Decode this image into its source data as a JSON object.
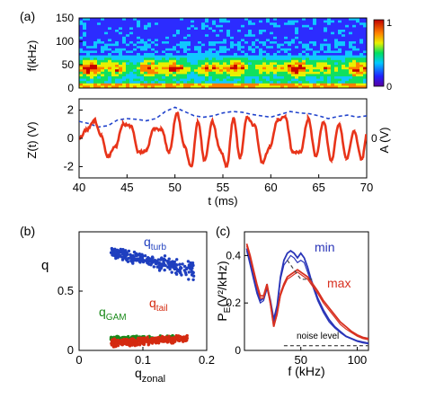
{
  "panel_labels": {
    "a": "(a)",
    "b": "(b)",
    "c": "(c)"
  },
  "colors": {
    "turb": "#1f3fbf",
    "tail": "#d42a10",
    "gam": "#1a8a1a",
    "zt": "#e8341a",
    "amp": "#2244cc",
    "min": "#2a35b8",
    "max": "#d83020",
    "noise": "#555555"
  },
  "chart_data": [
    {
      "type": "heatmap",
      "panel": "(a) top",
      "xlabel": "",
      "ylabel": "f(kHz)",
      "ylim": [
        0,
        150
      ],
      "yticks": [
        "0",
        "50",
        "100",
        "150"
      ],
      "colorbar": {
        "min": "0",
        "max": "1",
        "colormap": "rainbow"
      },
      "time_range_ms": [
        40,
        70
      ],
      "description_bands": [
        {
          "f_khz": [
            0,
            15
          ],
          "intensity": 0.7
        },
        {
          "f_khz": [
            25,
            65
          ],
          "intensity": "bursty 0.3-1.0"
        },
        {
          "f_khz": [
            65,
            150
          ],
          "intensity": 0.15
        }
      ]
    },
    {
      "type": "line",
      "panel": "(a) bottom",
      "xlabel": "t (ms)",
      "ylabel": "Z(t) (V)",
      "ylabel_right": "A (V)",
      "xlim": [
        40,
        70
      ],
      "ylim": [
        -2.8,
        2.8
      ],
      "xticks": [
        "40",
        "45",
        "50",
        "55",
        "60",
        "65",
        "70"
      ],
      "yticks": [
        "-2",
        "0",
        "2"
      ],
      "yticks_right": [
        "0"
      ],
      "series": [
        {
          "style": "red step line",
          "x": [
            40.0,
            40.8,
            41.6,
            42.3,
            43.0,
            43.8,
            44.6,
            45.4,
            46.2,
            47.0,
            47.8,
            48.6,
            49.4,
            50.2,
            51.0,
            51.7,
            52.4,
            53.1,
            53.9,
            54.7,
            55.4,
            56.1,
            56.8,
            57.5,
            58.3,
            59.1,
            59.9,
            60.7,
            61.5,
            62.3,
            63.1,
            63.9,
            64.7,
            65.5,
            66.3,
            67.1,
            67.9,
            68.7,
            69.5,
            70.0
          ],
          "values": [
            0.0,
            0.6,
            1.3,
            0.2,
            -1.3,
            -0.6,
            1.0,
            0.9,
            -1.0,
            -0.9,
            0.7,
            0.6,
            -1.0,
            1.8,
            -0.6,
            -2.0,
            1.2,
            -1.6,
            1.2,
            -0.8,
            -2.0,
            1.4,
            -1.4,
            1.5,
            0.9,
            -1.7,
            -0.6,
            1.3,
            1.5,
            -1.0,
            -1.0,
            1.4,
            -1.3,
            1.2,
            -1.6,
            1.0,
            -1.4,
            0.5,
            -1.5,
            0.2
          ]
        },
        {
          "style": "blue dashed line",
          "x": [
            40,
            41,
            42,
            43,
            44,
            45,
            46,
            47,
            48,
            49,
            50,
            51,
            52,
            53,
            54,
            55,
            56,
            57,
            58,
            59,
            60,
            61,
            62,
            63,
            64,
            65,
            66,
            67,
            68,
            69,
            70
          ],
          "values": [
            1.2,
            1.05,
            0.8,
            0.9,
            1.3,
            1.4,
            1.35,
            1.25,
            1.4,
            1.9,
            2.2,
            1.9,
            1.6,
            1.5,
            1.6,
            1.8,
            1.9,
            1.85,
            1.7,
            1.6,
            1.5,
            1.7,
            1.9,
            1.8,
            1.75,
            1.6,
            1.4,
            1.55,
            1.65,
            1.5,
            1.6
          ]
        }
      ]
    },
    {
      "type": "scatter",
      "panel": "(b)",
      "xlabel": "q_zonal",
      "ylabel": "q",
      "xlim": [
        0,
        0.2
      ],
      "ylim": [
        0,
        1.0
      ],
      "xticks": [
        "0",
        "0.1",
        "0.2"
      ],
      "yticks": [
        "0",
        "0.5"
      ],
      "series": [
        {
          "name": "q_turb",
          "label": "q",
          "sub": "turb",
          "x_range": [
            0.05,
            0.18
          ],
          "y_center": 0.75,
          "slope": -1.3,
          "spread": 0.06
        },
        {
          "name": "q_tail",
          "label": "q",
          "sub": "tail",
          "x_range": [
            0.05,
            0.17
          ],
          "y_center": 0.08,
          "slope": 0.3,
          "spread": 0.04
        },
        {
          "name": "q_GAM",
          "label": "q",
          "sub": "GAM",
          "x_range": [
            0.05,
            0.15
          ],
          "y_center": 0.1,
          "slope": 0.0,
          "spread": 0.03
        }
      ]
    },
    {
      "type": "line",
      "panel": "(c)",
      "xlabel": "f (kHz)",
      "ylabel": "P_E (V²/kHz)",
      "xlim": [
        0,
        110
      ],
      "ylim": [
        0,
        0.5
      ],
      "xticks": [
        "50",
        "100"
      ],
      "yticks": [
        "0",
        "0.2",
        "0.4"
      ],
      "annotations": [
        "noise level"
      ],
      "series": [
        {
          "name": "min",
          "x": [
            2,
            5,
            8,
            11,
            14,
            17,
            20,
            23,
            26,
            29,
            32,
            35,
            38,
            41,
            44,
            47,
            50,
            53,
            56,
            59,
            62,
            65,
            70,
            75,
            80,
            85,
            90,
            95,
            100,
            105,
            110
          ],
          "values": [
            0.43,
            0.37,
            0.31,
            0.25,
            0.21,
            0.22,
            0.27,
            0.21,
            0.13,
            0.19,
            0.31,
            0.38,
            0.41,
            0.42,
            0.41,
            0.39,
            0.41,
            0.39,
            0.35,
            0.3,
            0.26,
            0.22,
            0.17,
            0.13,
            0.1,
            0.08,
            0.06,
            0.05,
            0.04,
            0.035,
            0.03
          ]
        },
        {
          "name": "",
          "x": [
            2,
            5,
            8,
            11,
            14,
            17,
            20,
            23,
            26,
            29,
            32,
            35,
            38,
            41,
            44,
            47,
            50,
            53,
            56,
            59,
            62,
            65,
            70,
            75,
            80,
            85,
            90,
            95,
            100,
            105,
            110
          ],
          "values": [
            0.42,
            0.36,
            0.3,
            0.24,
            0.2,
            0.21,
            0.26,
            0.2,
            0.12,
            0.18,
            0.3,
            0.36,
            0.38,
            0.4,
            0.39,
            0.37,
            0.38,
            0.37,
            0.33,
            0.29,
            0.25,
            0.21,
            0.16,
            0.12,
            0.095,
            0.075,
            0.058,
            0.048,
            0.038,
            0.032,
            0.028
          ]
        },
        {
          "name": "max",
          "x": [
            2,
            5,
            8,
            11,
            14,
            17,
            20,
            23,
            26,
            29,
            32,
            35,
            38,
            41,
            44,
            47,
            50,
            53,
            56,
            59,
            62,
            65,
            70,
            75,
            80,
            85,
            90,
            95,
            100,
            105,
            110
          ],
          "values": [
            0.45,
            0.4,
            0.34,
            0.28,
            0.23,
            0.23,
            0.28,
            0.2,
            0.1,
            0.16,
            0.24,
            0.28,
            0.31,
            0.32,
            0.33,
            0.34,
            0.33,
            0.32,
            0.31,
            0.29,
            0.27,
            0.25,
            0.21,
            0.18,
            0.15,
            0.12,
            0.1,
            0.08,
            0.065,
            0.055,
            0.05
          ]
        },
        {
          "name": "",
          "x": [
            2,
            5,
            8,
            11,
            14,
            17,
            20,
            23,
            26,
            29,
            32,
            35,
            38,
            41,
            44,
            47,
            50,
            53,
            56,
            59,
            62,
            65,
            70,
            75,
            80,
            85,
            90,
            95,
            100,
            105,
            110
          ],
          "values": [
            0.44,
            0.39,
            0.33,
            0.27,
            0.22,
            0.22,
            0.27,
            0.19,
            0.1,
            0.15,
            0.23,
            0.27,
            0.3,
            0.31,
            0.32,
            0.33,
            0.32,
            0.31,
            0.3,
            0.28,
            0.26,
            0.24,
            0.2,
            0.17,
            0.14,
            0.11,
            0.09,
            0.075,
            0.06,
            0.05,
            0.045
          ]
        },
        {
          "name": "noise level",
          "style": "dashed",
          "x": [
            35,
            110
          ],
          "values": [
            0.02,
            0.02
          ]
        },
        {
          "name": "",
          "style": "dashed",
          "x": [
            38,
            50,
            60
          ],
          "values": [
            0.38,
            0.3,
            0.3
          ]
        }
      ]
    }
  ],
  "labels": {
    "a_ylabel_top": "f(kHz)",
    "a_ylabel_bottom": "Z(t) (V)",
    "a_ylabel_right": "A (V)",
    "a_xlabel": "t (ms)",
    "b_ylabel": "q",
    "b_xlabel_main": "q",
    "b_xlabel_sub": "zonal",
    "b_turb_main": "q",
    "b_turb_sub": "turb",
    "b_tail_main": "q",
    "b_tail_sub": "tail",
    "b_gam_main": "q",
    "b_gam_sub": "GAM",
    "c_ylabel_main": "P",
    "c_ylabel_sub": "E",
    "c_ylabel_paren": "(V²/kHz)",
    "c_xlabel": "f (kHz)",
    "c_min": "min",
    "c_max": "max",
    "c_noise": "noise level",
    "cbar_max": "1",
    "cbar_min": "0"
  }
}
